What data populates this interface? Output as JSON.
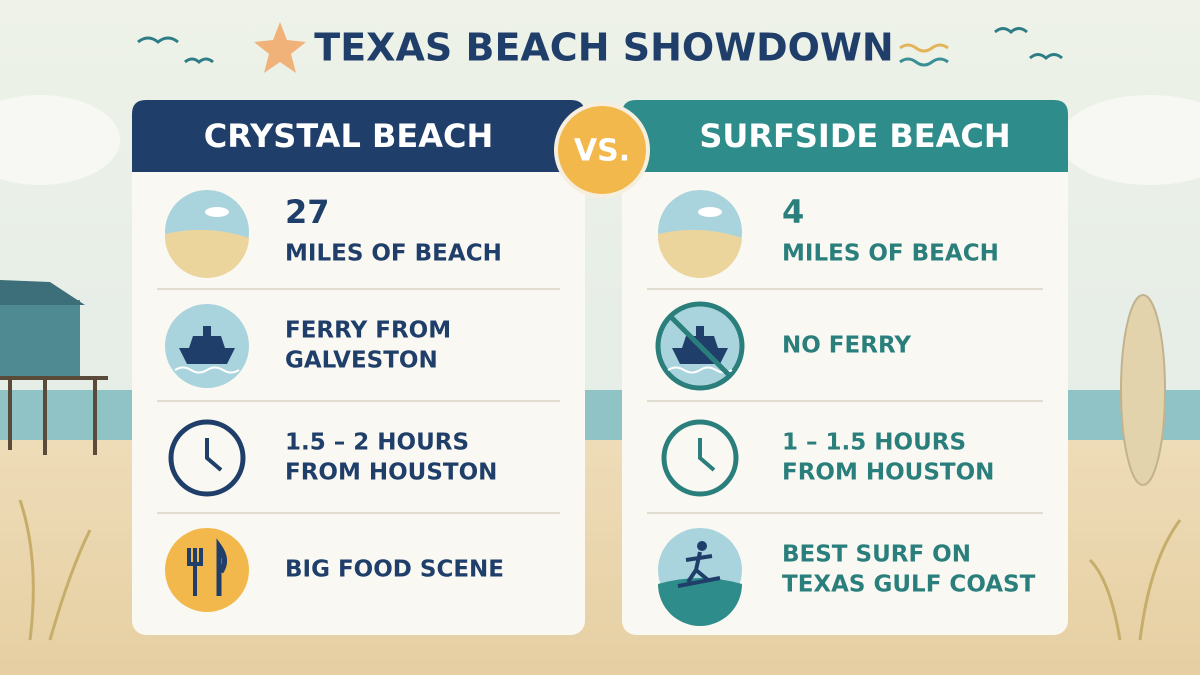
{
  "title": "TEXAS BEACH SHOWDOWN",
  "vs": "VS.",
  "cards": [
    {
      "title": "CRYSTAL BEACH",
      "rows": [
        {
          "number": 27,
          "lines": [
            "MILES OF BEACH"
          ]
        },
        {
          "lines": [
            "FERRY FROM",
            "GALVESTON"
          ]
        },
        {
          "lines": [
            "1.5 – 2 HOURS",
            "FROM HOUSTON"
          ]
        },
        {
          "lines": [
            "BIG FOOD SCENE"
          ]
        }
      ]
    },
    {
      "title": "SURFSIDE BEACH",
      "rows": [
        {
          "number": 4,
          "lines": [
            "MILES OF BEACH"
          ]
        },
        {
          "lines": [
            "NO FERRY"
          ]
        },
        {
          "lines": [
            "1 – 1.5 HOURS",
            "FROM HOUSTON"
          ]
        },
        {
          "lines": [
            "BEST SURF ON",
            "TEXAS GULF COAST"
          ]
        }
      ]
    }
  ]
}
